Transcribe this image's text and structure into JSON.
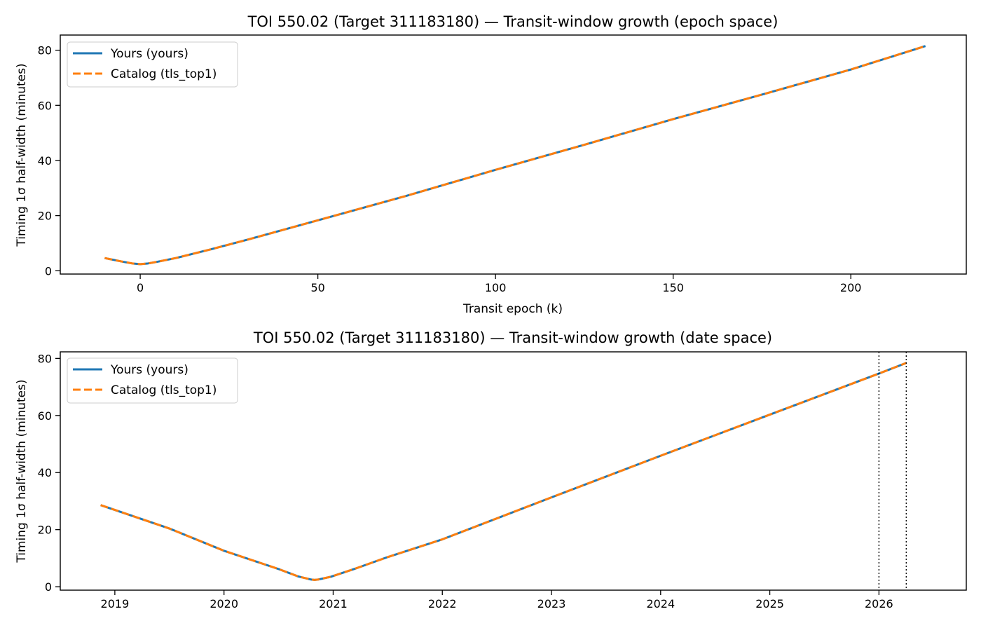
{
  "chart_data": [
    {
      "type": "line",
      "title": "TOI 550.02 (Target 311183180) — Transit-window growth (epoch space)",
      "xlabel": "Transit epoch (k)",
      "ylabel": "Timing 1σ half-width (minutes)",
      "xlim": [
        -22.5,
        232.5
      ],
      "ylim": [
        -1.2,
        85.5
      ],
      "xticks": [
        0,
        50,
        100,
        150,
        200
      ],
      "xtick_labels": [
        "0",
        "50",
        "100",
        "150",
        "200"
      ],
      "yticks": [
        0,
        20,
        40,
        60,
        80
      ],
      "ytick_labels": [
        "0",
        "20",
        "40",
        "60",
        "80"
      ],
      "grid": false,
      "legend_position": "upper-left",
      "series": [
        {
          "name": "Yours (yours)",
          "color": "#1f77b4",
          "style": "solid",
          "x": [
            -10,
            -5,
            -2,
            0,
            2,
            5,
            10,
            20,
            30,
            50,
            75,
            100,
            125,
            150,
            175,
            200,
            221
          ],
          "y": [
            4.6,
            3.3,
            2.6,
            2.4,
            2.6,
            3.3,
            4.6,
            7.8,
            11.2,
            18.3,
            27.2,
            36.6,
            45.7,
            55.0,
            63.9,
            73.0,
            81.5
          ]
        },
        {
          "name": "Catalog (tls_top1)",
          "color": "#ff7f0e",
          "style": "dashed",
          "x": [
            -10,
            -5,
            -2,
            0,
            2,
            5,
            10,
            20,
            30,
            50,
            75,
            100,
            125,
            150,
            175,
            200,
            221
          ],
          "y": [
            4.6,
            3.3,
            2.6,
            2.4,
            2.6,
            3.3,
            4.6,
            7.8,
            11.2,
            18.3,
            27.2,
            36.6,
            45.7,
            55.0,
            63.9,
            73.0,
            81.5
          ]
        }
      ],
      "vlines": []
    },
    {
      "type": "line",
      "title": "TOI 550.02 (Target 311183180) — Transit-window growth (date space)",
      "xlabel": "",
      "ylabel": "Timing 1σ half-width (minutes)",
      "xlim": [
        2018.5,
        2026.8
      ],
      "ylim": [
        -1.2,
        82.3
      ],
      "xticks": [
        2019,
        2020,
        2021,
        2022,
        2023,
        2024,
        2025,
        2026
      ],
      "xtick_labels": [
        "2019",
        "2020",
        "2021",
        "2022",
        "2023",
        "2024",
        "2025",
        "2026"
      ],
      "yticks": [
        0,
        20,
        40,
        60,
        80
      ],
      "ytick_labels": [
        "0",
        "20",
        "40",
        "60",
        "80"
      ],
      "grid": false,
      "legend_position": "upper-left",
      "series": [
        {
          "name": "Yours (yours)",
          "color": "#1f77b4",
          "style": "solid",
          "x": [
            2018.87,
            2019.5,
            2020.0,
            2020.5,
            2020.68,
            2020.8,
            2020.83,
            2020.86,
            2020.98,
            2021.2,
            2021.5,
            2022.0,
            2023.0,
            2024.0,
            2025.0,
            2026.0,
            2026.25
          ],
          "y": [
            28.6,
            20.4,
            12.6,
            6.2,
            3.6,
            2.5,
            2.4,
            2.5,
            3.5,
            6.3,
            10.4,
            16.6,
            31.3,
            45.9,
            60.3,
            74.7,
            78.4
          ]
        },
        {
          "name": "Catalog (tls_top1)",
          "color": "#ff7f0e",
          "style": "dashed",
          "x": [
            2018.87,
            2019.5,
            2020.0,
            2020.5,
            2020.68,
            2020.8,
            2020.83,
            2020.86,
            2020.98,
            2021.2,
            2021.5,
            2022.0,
            2023.0,
            2024.0,
            2025.0,
            2026.0,
            2026.25
          ],
          "y": [
            28.6,
            20.4,
            12.6,
            6.2,
            3.6,
            2.5,
            2.4,
            2.5,
            3.5,
            6.3,
            10.4,
            16.6,
            31.3,
            45.9,
            60.3,
            74.7,
            78.4
          ]
        }
      ],
      "vlines": [
        {
          "x": 2026.0,
          "color": "#000000",
          "style": "dotted"
        },
        {
          "x": 2026.25,
          "color": "#000000",
          "style": "dotted"
        }
      ]
    }
  ]
}
